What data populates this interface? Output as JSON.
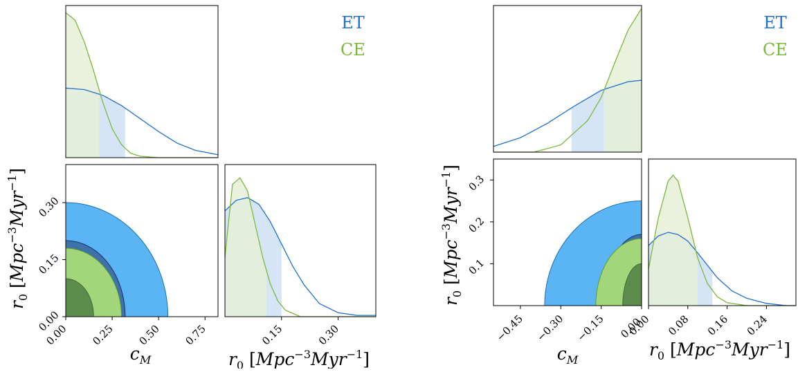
{
  "colors": {
    "et": "#1f6fd1",
    "ce": "#7ab83c",
    "et_fill_outer": "#5bb5f5",
    "et_fill_inner": "#3d73a8",
    "ce_fill_outer": "#a3d67a",
    "ce_fill_inner": "#5e8c4c",
    "et_ci_fill": "#cfe0f5",
    "ce_ci_fill": "#e6f0d8",
    "overlap_fill": "#c4ddd3"
  },
  "chart_data": [
    {
      "type": "corner",
      "legend": [
        {
          "label": "ET",
          "color": "#1f6fd1"
        },
        {
          "label": "CE",
          "color": "#7ab83c"
        }
      ],
      "legend_placement": "top-right",
      "x_parameter_label": "c_M",
      "y_parameter_label": "r0 [Mpc^-3 Myr^-1]",
      "cM_range": [
        0.0,
        0.82
      ],
      "r0_range": [
        0.0,
        0.4
      ],
      "cM_ticks": [
        "0.00",
        "0.25",
        "0.50",
        "0.75"
      ],
      "r0_ticks_y": [
        "0.00",
        "0.15",
        "0.30"
      ],
      "r0_ticks_x": [
        "0.15",
        "0.30"
      ],
      "marginal_cM": {
        "series": [
          {
            "name": "ET",
            "x": [
              0.0,
              0.1,
              0.2,
              0.3,
              0.4,
              0.5,
              0.6,
              0.7,
              0.82
            ],
            "y": [
              0.48,
              0.47,
              0.43,
              0.36,
              0.27,
              0.18,
              0.1,
              0.05,
              0.02
            ]
          },
          {
            "name": "CE",
            "x": [
              0.0,
              0.05,
              0.1,
              0.15,
              0.2,
              0.25,
              0.3,
              0.35,
              0.4,
              0.5
            ],
            "y": [
              1.0,
              0.95,
              0.8,
              0.6,
              0.38,
              0.2,
              0.09,
              0.03,
              0.01,
              0.0
            ]
          }
        ],
        "upper_limits": {
          "ET": 0.32,
          "CE": 0.18
        }
      },
      "marginal_r0": {
        "series": [
          {
            "name": "ET",
            "x": [
              0.0,
              0.03,
              0.06,
              0.09,
              0.12,
              0.15,
              0.18,
              0.21,
              0.25,
              0.3,
              0.35
            ],
            "y": [
              0.8,
              0.88,
              0.9,
              0.85,
              0.72,
              0.55,
              0.38,
              0.24,
              0.1,
              0.03,
              0.01
            ]
          },
          {
            "name": "CE",
            "x": [
              0.0,
              0.02,
              0.04,
              0.06,
              0.08,
              0.1,
              0.12,
              0.14,
              0.16,
              0.2
            ],
            "y": [
              0.45,
              1.0,
              1.05,
              0.95,
              0.7,
              0.45,
              0.25,
              0.12,
              0.05,
              0.0
            ]
          }
        ],
        "upper_limits": {
          "ET": 0.15,
          "CE": 0.11
        }
      },
      "contours_2d": {
        "ET": {
          "levels": [
            "68%",
            "95%"
          ],
          "cM_extent": [
            0.0,
            0.32,
            0.55
          ],
          "r0_extent": [
            0.0,
            0.2,
            0.3
          ]
        },
        "CE": {
          "levels": [
            "68%",
            "95%"
          ],
          "cM_extent": [
            0.0,
            0.15,
            0.3
          ],
          "r0_extent": [
            0.0,
            0.1,
            0.18
          ]
        }
      }
    },
    {
      "type": "corner",
      "legend": [
        {
          "label": "ET",
          "color": "#1f6fd1"
        },
        {
          "label": "CE",
          "color": "#7ab83c"
        }
      ],
      "legend_placement": "top-right",
      "x_parameter_label": "c_M",
      "y_parameter_label": "r0 [Mpc^-3 Myr^-1]",
      "cM_range": [
        -0.55,
        0.0
      ],
      "r0_range": [
        0.0,
        0.35
      ],
      "cM_ticks": [
        "−0.45",
        "−0.30",
        "−0.15",
        "0.00"
      ],
      "r0_ticks_y": [
        "0.1",
        "0.2",
        "0.3"
      ],
      "r0_ticks_x": [
        "0.00",
        "0.08",
        "0.16",
        "0.24"
      ],
      "marginal_cM": {
        "series": [
          {
            "name": "ET",
            "x": [
              -0.55,
              -0.45,
              -0.35,
              -0.25,
              -0.15,
              -0.05,
              0.0
            ],
            "y": [
              0.04,
              0.1,
              0.2,
              0.32,
              0.43,
              0.49,
              0.5
            ]
          },
          {
            "name": "CE",
            "x": [
              -0.4,
              -0.3,
              -0.2,
              -0.15,
              -0.1,
              -0.05,
              0.0
            ],
            "y": [
              0.0,
              0.05,
              0.22,
              0.38,
              0.62,
              0.85,
              1.0
            ]
          }
        ],
        "upper_limits": {
          "ET": -0.26,
          "CE": -0.14
        }
      },
      "marginal_r0": {
        "series": [
          {
            "name": "ET",
            "x": [
              0.0,
              0.02,
              0.04,
              0.06,
              0.08,
              0.1,
              0.12,
              0.14,
              0.17,
              0.2,
              0.24,
              0.28
            ],
            "y": [
              0.82,
              0.95,
              1.0,
              0.97,
              0.88,
              0.72,
              0.55,
              0.38,
              0.2,
              0.1,
              0.03,
              0.0
            ]
          },
          {
            "name": "CE",
            "x": [
              0.0,
              0.02,
              0.04,
              0.05,
              0.06,
              0.08,
              0.1,
              0.12,
              0.14,
              0.16,
              0.2
            ],
            "y": [
              0.5,
              1.2,
              1.7,
              1.78,
              1.7,
              1.2,
              0.65,
              0.3,
              0.12,
              0.04,
              0.0
            ]
          }
        ],
        "upper_limits": {
          "ET": 0.13,
          "CE": 0.1
        }
      },
      "contours_2d": {
        "ET": {
          "levels": [
            "68%",
            "95%"
          ],
          "cM_extent": [
            -0.36,
            -0.22,
            0.0
          ],
          "r0_extent": [
            0.0,
            0.17,
            0.25
          ]
        },
        "CE": {
          "levels": [
            "68%",
            "95%"
          ],
          "cM_extent": [
            -0.17,
            -0.1,
            0.0
          ],
          "r0_extent": [
            0.0,
            0.1,
            0.16
          ]
        }
      }
    }
  ]
}
